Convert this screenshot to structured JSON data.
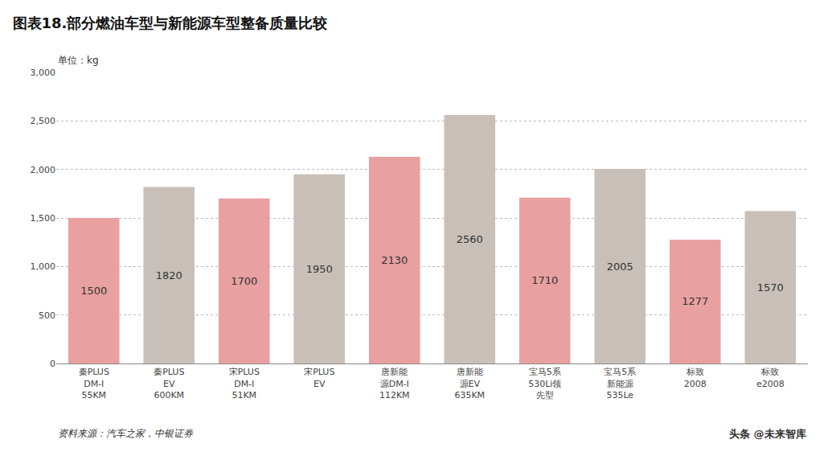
{
  "chart_data": {
    "type": "bar",
    "title": "图表18.部分燃油车型与新能源车型整备质量比较",
    "ylabel": "单位：kg",
    "annotations": [
      "资料来源：汽车之家，中银证券",
      "头条 @未来智库"
    ],
    "categories": [
      "秦PLUS\nDM-I\n55KM",
      "秦PLUS\nEV\n600KM",
      "宋PLUS\nDM-I\n51KM",
      "宋PLUS\nEV",
      "唐新能\n源DM-I\n112KM",
      "唐新能\n源EV\n635KM",
      "宝马5系\n530Li领\n先型",
      "宝马5系\n新能源\n535Le",
      "标致\n2008",
      "标致\ne2008"
    ],
    "values": [
      1500,
      1820,
      1700,
      1950,
      2130,
      2560,
      1710,
      2005,
      1277,
      1570
    ],
    "colors": [
      "#E8A0A0",
      "#C8C0B8",
      "#E8A0A0",
      "#C8C0B8",
      "#E8A0A0",
      "#C8C0B8",
      "#E8A0A0",
      "#C8C0B8",
      "#E8A0A0",
      "#C8C0B8"
    ],
    "ylim": [
      0,
      3000
    ],
    "yticks": [
      0,
      500,
      {
        "value": 1000,
        "label": "1,000"
      },
      {
        "value": 1500,
        "label": "1,500"
      },
      {
        "value": 2000,
        "label": "2,000"
      },
      {
        "value": 2500,
        "label": "2,500"
      },
      {
        "value": 3000,
        "label": "3,000"
      }
    ],
    "grid": true,
    "data_labels": true
  }
}
